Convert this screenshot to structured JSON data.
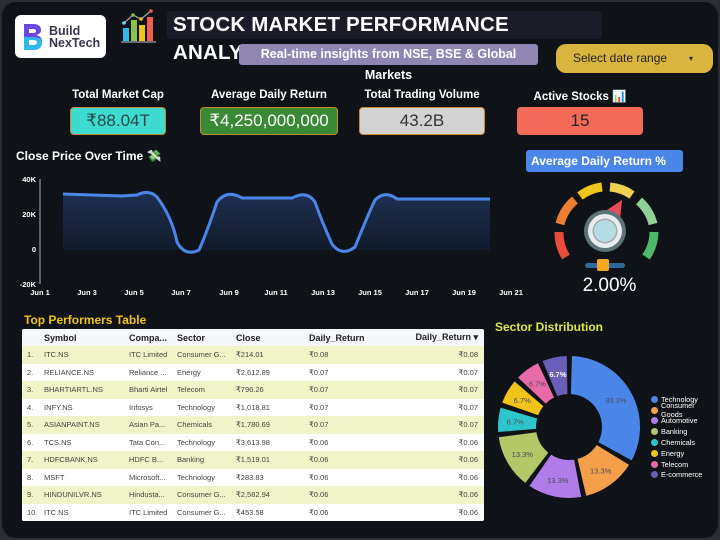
{
  "header": {
    "logo_line1": "Build",
    "logo_line2": "NexTech",
    "title": "STOCK MARKET PERFORMANCE ANALYSIS",
    "subtitle": "Real-time insights from NSE, BSE & Global Markets",
    "date_select": {
      "placeholder": "Select date range",
      "caret": "▾"
    }
  },
  "kpis": [
    {
      "label": "Total Market Cap",
      "value": "₹88.04T",
      "bg": "#3ddbd0",
      "color": "#2a4a48"
    },
    {
      "label": "Average Daily Return",
      "value": "₹4,250,000,000",
      "bg": "#3a8a35",
      "color": "#ffffff"
    },
    {
      "label": "Total Trading Volume",
      "value": "43.2B",
      "bg": "#d3d3d3",
      "color": "#333333"
    },
    {
      "label": "Active Stocks 📊",
      "value": "15",
      "bg": "#f46a58",
      "color": "#222222"
    }
  ],
  "line_chart": {
    "title": "Close Price Over Time 💸"
  },
  "chart_data": [
    {
      "type": "area",
      "title": "Close Price Over Time",
      "xlabel": "",
      "ylabel": "",
      "ylim": [
        -20000,
        40000
      ],
      "yticks": [
        "40K",
        "20K",
        "0",
        "-20K"
      ],
      "xticks": [
        "Jun 1",
        "Jun 3",
        "Jun 5",
        "Jun 7",
        "Jun 9",
        "Jun 11",
        "Jun 13",
        "Jun 15",
        "Jun 17",
        "Jun 19",
        "Jun 21"
      ],
      "x": [
        "Jun 2",
        "Jun 3",
        "Jun 4",
        "Jun 5",
        "Jun 6",
        "Jun 7",
        "Jun 8",
        "Jun 9",
        "Jun 10",
        "Jun 11",
        "Jun 12",
        "Jun 13",
        "Jun 14",
        "Jun 15",
        "Jun 16",
        "Jun 17",
        "Jun 18",
        "Jun 19",
        "Jun 20"
      ],
      "values": [
        30000,
        29500,
        29500,
        29500,
        32000,
        12000,
        -3500,
        14000,
        32000,
        29000,
        29000,
        32000,
        12000,
        -3500,
        14000,
        32000,
        29000,
        29000,
        29000
      ],
      "grid": false,
      "color": "#4a86e8"
    },
    {
      "type": "pie",
      "title": "Sector Distribution",
      "categories": [
        "Technology",
        "Consumer Goods",
        "Automotive",
        "Banking",
        "Chemicals",
        "Energy",
        "Telecom",
        "E-commerce"
      ],
      "values": [
        33.3,
        13.3,
        13.3,
        13.3,
        6.7,
        6.7,
        6.7,
        6.7
      ],
      "colors": [
        "#4a86e8",
        "#f4a04a",
        "#b07ce8",
        "#b3c766",
        "#2ec4cc",
        "#f0c419",
        "#e86aa8",
        "#6a5fb8"
      ],
      "legend_position": "right",
      "donut": true
    }
  ],
  "gauge": {
    "title": "Average Daily Return %",
    "value": "2.00%"
  },
  "table": {
    "title": "Top Performers Table",
    "columns": [
      "",
      "Symbol",
      "Compa...",
      "Sector",
      "Close",
      "Daily_Return",
      "Daily_Return ▾"
    ],
    "rows": [
      [
        "1.",
        "ITC.NS",
        "ITC Limited",
        "Consumer G...",
        "₹214.01",
        "₹0.08",
        "₹0.08"
      ],
      [
        "2.",
        "RELIANCE.NS",
        "Reliance ...",
        "Energy",
        "₹2,612.89",
        "₹0.07",
        "₹0.07"
      ],
      [
        "3.",
        "BHARTIARTL.NS",
        "Bharti Airtel",
        "Telecom",
        "₹796.26",
        "₹0.07",
        "₹0.07"
      ],
      [
        "4.",
        "INFY.NS",
        "Infosys",
        "Technology",
        "₹1,018.81",
        "₹0.07",
        "₹0.07"
      ],
      [
        "5.",
        "ASIANPAINT.NS",
        "Asian Pa...",
        "Chemicals",
        "₹1,780.69",
        "₹0.07",
        "₹0.07"
      ],
      [
        "6.",
        "TCS.NS",
        "Tata Con...",
        "Technology",
        "₹3,613.98",
        "₹0.06",
        "₹0.06"
      ],
      [
        "7.",
        "HDFCBANK.NS",
        "HDFC B...",
        "Banking",
        "₹1,519.01",
        "₹0.06",
        "₹0.06"
      ],
      [
        "8.",
        "MSFT",
        "Microsoft...",
        "Technology",
        "₹283.83",
        "₹0.06",
        "₹0.06"
      ],
      [
        "9.",
        "HINDUNILVR.NS",
        "Hindusta...",
        "Consumer G...",
        "₹2,582.94",
        "₹0.06",
        "₹0.06"
      ],
      [
        "10.",
        "ITC.NS",
        "ITC Limited",
        "Consumer G...",
        "₹453.58",
        "₹0.06",
        "₹0.06"
      ]
    ]
  },
  "sector": {
    "title": "Sector Distribution",
    "legend": [
      "Technology",
      "Consumer Goods",
      "Automotive",
      "Banking",
      "Chemicals",
      "Energy",
      "Telecom",
      "E-commerce"
    ]
  }
}
